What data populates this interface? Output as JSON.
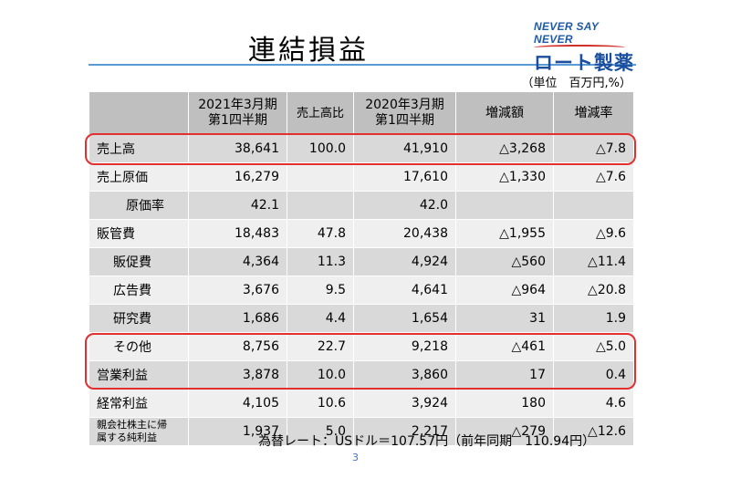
{
  "title": "連結損益",
  "logo": {
    "tagline": "NEVER SAY NEVER",
    "name": "ロート製薬"
  },
  "unit_note": "（単位　百万円,%）",
  "table": {
    "headers": [
      "",
      "2021年3月期\n第1四半期",
      "売上高比",
      "2020年3月期\n第1四半期",
      "増減額",
      "増減率"
    ],
    "rows": [
      {
        "label": "売上高",
        "cur": "38,641",
        "ratio": "100.0",
        "prev": "41,910",
        "diff": "△3,268",
        "rate": "△7.8"
      },
      {
        "label": "売上原価",
        "cur": "16,279",
        "ratio": "",
        "prev": "17,610",
        "diff": "△1,330",
        "rate": "△7.6"
      },
      {
        "label": "原価率",
        "cur": "42.1",
        "ratio": "",
        "prev": "42.0",
        "diff": "",
        "rate": ""
      },
      {
        "label": "販管費",
        "cur": "18,483",
        "ratio": "47.8",
        "prev": "20,438",
        "diff": "△1,955",
        "rate": "△9.6"
      },
      {
        "label": "販促費",
        "cur": "4,364",
        "ratio": "11.3",
        "prev": "4,924",
        "diff": "△560",
        "rate": "△11.4"
      },
      {
        "label": "広告費",
        "cur": "3,676",
        "ratio": "9.5",
        "prev": "4,641",
        "diff": "△964",
        "rate": "△20.8"
      },
      {
        "label": "研究費",
        "cur": "1,686",
        "ratio": "4.4",
        "prev": "1,654",
        "diff": "31",
        "rate": "1.9"
      },
      {
        "label": "その他",
        "cur": "8,756",
        "ratio": "22.7",
        "prev": "9,218",
        "diff": "△461",
        "rate": "△5.0"
      },
      {
        "label": "営業利益",
        "cur": "3,878",
        "ratio": "10.0",
        "prev": "3,860",
        "diff": "17",
        "rate": "0.4"
      },
      {
        "label": "経常利益",
        "cur": "4,105",
        "ratio": "10.6",
        "prev": "3,924",
        "diff": "180",
        "rate": "4.6"
      },
      {
        "label": "親会社株主に帰\n属する純利益",
        "cur": "1,937",
        "ratio": "5.0",
        "prev": "2,217",
        "diff": "△279",
        "rate": "△12.6"
      }
    ]
  },
  "fx_note": "為替レート：USドル＝107.57円（前年同期　110.94円）",
  "page_number": "3"
}
